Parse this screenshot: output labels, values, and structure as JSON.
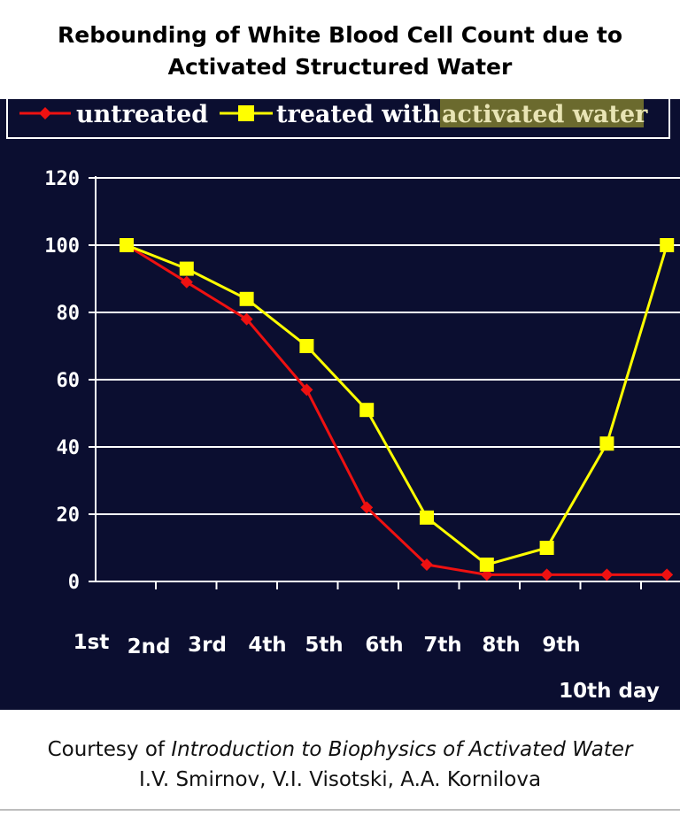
{
  "title": {
    "line1": "Rebounding of White Blood Cell Count due to",
    "line2": "Activated Structured Water"
  },
  "footer": {
    "prefix": "Courtesy of ",
    "book": "Introduction to Biophysics of Activated Water",
    "authors": "I.V. Smirnov, V.I. Visotski, A.A. Kornilova"
  },
  "colors": {
    "background": "#0b0e30",
    "untreated": "#ee1111",
    "treated": "#ffff00",
    "grid": "#ffffff",
    "legend_highlight": "#6b6a2e",
    "highlight_text": "#e8e4b4"
  },
  "chart_data": {
    "type": "line",
    "title": "",
    "xlabel": "",
    "ylabel": "",
    "x_tick_labels": [
      "1st",
      "2nd",
      "3rd",
      "4th",
      "5th",
      "6th",
      "7th",
      "8th",
      "9th",
      "10th day"
    ],
    "y_ticks": [
      "0",
      "20",
      "40",
      "60",
      "80",
      "100",
      "120"
    ],
    "ylim": [
      0,
      120
    ],
    "grid": true,
    "legend_position": "top",
    "legend": {
      "untreated_label": "untreated",
      "treated_prefix": "treated with ",
      "treated_highlight": "activated water"
    },
    "series": [
      {
        "name": "untreated",
        "marker": "diamond",
        "values": [
          100,
          89,
          78,
          57,
          22,
          5,
          2,
          2,
          2,
          2
        ]
      },
      {
        "name": "treated with activated water",
        "marker": "square",
        "values": [
          100,
          93,
          84,
          70,
          51,
          19,
          5,
          10,
          41,
          100
        ]
      }
    ]
  }
}
